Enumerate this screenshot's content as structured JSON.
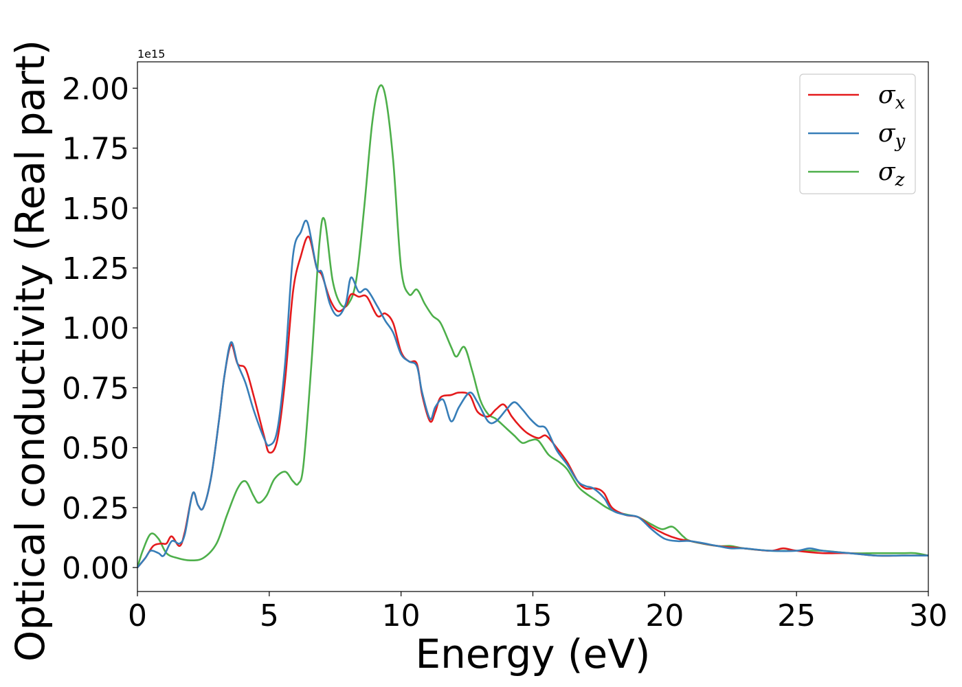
{
  "chart_data": {
    "type": "line",
    "title": "",
    "xlabel": "Energy (eV)",
    "ylabel": "Optical conductivity (Real part)",
    "y_offset_label": "1e15",
    "xlim": [
      0,
      30
    ],
    "ylim": [
      -0.1,
      2.11
    ],
    "x_ticks": [
      0,
      5,
      10,
      15,
      20,
      25,
      30
    ],
    "x_tick_labels": [
      "0",
      "5",
      "10",
      "15",
      "20",
      "25",
      "30"
    ],
    "y_ticks": [
      0,
      0.25,
      0.5,
      0.75,
      1.0,
      1.25,
      1.5,
      1.75,
      2.0
    ],
    "y_tick_labels": [
      "0.00",
      "0.25",
      "0.50",
      "0.75",
      "1.00",
      "1.25",
      "1.50",
      "1.75",
      "2.00"
    ],
    "grid": false,
    "legend_position": "top-right",
    "series": [
      {
        "name": "σ",
        "name_sub": "x",
        "color": "#e41a1c",
        "points": [
          [
            0,
            0
          ],
          [
            0.3,
            0.04
          ],
          [
            0.6,
            0.09
          ],
          [
            0.9,
            0.1
          ],
          [
            1.1,
            0.1
          ],
          [
            1.3,
            0.13
          ],
          [
            1.6,
            0.09
          ],
          [
            1.8,
            0.15
          ],
          [
            2.1,
            0.31
          ],
          [
            2.3,
            0.26
          ],
          [
            2.5,
            0.25
          ],
          [
            2.8,
            0.38
          ],
          [
            3.1,
            0.62
          ],
          [
            3.3,
            0.8
          ],
          [
            3.55,
            0.93
          ],
          [
            3.8,
            0.85
          ],
          [
            4.1,
            0.83
          ],
          [
            4.4,
            0.72
          ],
          [
            4.8,
            0.55
          ],
          [
            5.0,
            0.48
          ],
          [
            5.3,
            0.53
          ],
          [
            5.6,
            0.78
          ],
          [
            5.9,
            1.15
          ],
          [
            6.2,
            1.3
          ],
          [
            6.5,
            1.38
          ],
          [
            6.8,
            1.25
          ],
          [
            7.0,
            1.22
          ],
          [
            7.3,
            1.12
          ],
          [
            7.6,
            1.07
          ],
          [
            7.9,
            1.09
          ],
          [
            8.1,
            1.14
          ],
          [
            8.4,
            1.13
          ],
          [
            8.7,
            1.13
          ],
          [
            9.1,
            1.05
          ],
          [
            9.4,
            1.06
          ],
          [
            9.7,
            1.02
          ],
          [
            10.0,
            0.9
          ],
          [
            10.3,
            0.86
          ],
          [
            10.6,
            0.85
          ],
          [
            10.8,
            0.72
          ],
          [
            11.1,
            0.61
          ],
          [
            11.3,
            0.65
          ],
          [
            11.5,
            0.71
          ],
          [
            11.9,
            0.72
          ],
          [
            12.2,
            0.73
          ],
          [
            12.6,
            0.72
          ],
          [
            12.9,
            0.65
          ],
          [
            13.3,
            0.63
          ],
          [
            13.6,
            0.66
          ],
          [
            13.9,
            0.68
          ],
          [
            14.2,
            0.63
          ],
          [
            14.5,
            0.59
          ],
          [
            14.8,
            0.56
          ],
          [
            15.2,
            0.54
          ],
          [
            15.5,
            0.55
          ],
          [
            15.9,
            0.5
          ],
          [
            16.3,
            0.44
          ],
          [
            16.7,
            0.36
          ],
          [
            17.0,
            0.33
          ],
          [
            17.4,
            0.33
          ],
          [
            17.7,
            0.31
          ],
          [
            18.0,
            0.25
          ],
          [
            18.5,
            0.22
          ],
          [
            19.0,
            0.21
          ],
          [
            19.5,
            0.17
          ],
          [
            20.0,
            0.14
          ],
          [
            20.5,
            0.12
          ],
          [
            21.0,
            0.11
          ],
          [
            22.0,
            0.09
          ],
          [
            23.0,
            0.08
          ],
          [
            24.0,
            0.07
          ],
          [
            24.5,
            0.08
          ],
          [
            25.0,
            0.07
          ],
          [
            26.0,
            0.06
          ],
          [
            27.0,
            0.06
          ],
          [
            28.0,
            0.05
          ],
          [
            29.0,
            0.05
          ],
          [
            30.0,
            0.05
          ]
        ]
      },
      {
        "name": "σ",
        "name_sub": "y",
        "color": "#377eb8",
        "points": [
          [
            0,
            0
          ],
          [
            0.3,
            0.04
          ],
          [
            0.5,
            0.07
          ],
          [
            0.8,
            0.06
          ],
          [
            1.0,
            0.05
          ],
          [
            1.3,
            0.11
          ],
          [
            1.6,
            0.1
          ],
          [
            1.8,
            0.14
          ],
          [
            2.1,
            0.31
          ],
          [
            2.3,
            0.26
          ],
          [
            2.5,
            0.25
          ],
          [
            2.8,
            0.38
          ],
          [
            3.1,
            0.62
          ],
          [
            3.3,
            0.8
          ],
          [
            3.55,
            0.94
          ],
          [
            3.8,
            0.85
          ],
          [
            4.1,
            0.77
          ],
          [
            4.4,
            0.66
          ],
          [
            4.8,
            0.54
          ],
          [
            5.0,
            0.51
          ],
          [
            5.3,
            0.57
          ],
          [
            5.6,
            0.85
          ],
          [
            5.9,
            1.3
          ],
          [
            6.2,
            1.4
          ],
          [
            6.45,
            1.44
          ],
          [
            6.8,
            1.25
          ],
          [
            7.0,
            1.23
          ],
          [
            7.3,
            1.1
          ],
          [
            7.6,
            1.05
          ],
          [
            7.9,
            1.1
          ],
          [
            8.1,
            1.21
          ],
          [
            8.4,
            1.15
          ],
          [
            8.7,
            1.16
          ],
          [
            9.1,
            1.09
          ],
          [
            9.4,
            1.03
          ],
          [
            9.7,
            0.98
          ],
          [
            10.0,
            0.89
          ],
          [
            10.3,
            0.86
          ],
          [
            10.6,
            0.84
          ],
          [
            10.8,
            0.73
          ],
          [
            11.1,
            0.62
          ],
          [
            11.3,
            0.67
          ],
          [
            11.6,
            0.7
          ],
          [
            11.9,
            0.61
          ],
          [
            12.2,
            0.67
          ],
          [
            12.6,
            0.73
          ],
          [
            12.9,
            0.69
          ],
          [
            13.3,
            0.61
          ],
          [
            13.6,
            0.61
          ],
          [
            14.0,
            0.66
          ],
          [
            14.3,
            0.69
          ],
          [
            14.6,
            0.66
          ],
          [
            14.9,
            0.62
          ],
          [
            15.2,
            0.59
          ],
          [
            15.5,
            0.58
          ],
          [
            15.9,
            0.49
          ],
          [
            16.3,
            0.43
          ],
          [
            16.7,
            0.36
          ],
          [
            17.0,
            0.34
          ],
          [
            17.3,
            0.33
          ],
          [
            17.7,
            0.29
          ],
          [
            18.0,
            0.24
          ],
          [
            18.5,
            0.22
          ],
          [
            19.0,
            0.21
          ],
          [
            19.5,
            0.16
          ],
          [
            20.0,
            0.12
          ],
          [
            20.5,
            0.11
          ],
          [
            21.0,
            0.11
          ],
          [
            22.0,
            0.09
          ],
          [
            22.5,
            0.08
          ],
          [
            23.0,
            0.08
          ],
          [
            24.0,
            0.07
          ],
          [
            25.0,
            0.07
          ],
          [
            25.5,
            0.08
          ],
          [
            26.0,
            0.07
          ],
          [
            27.0,
            0.06
          ],
          [
            28.0,
            0.05
          ],
          [
            29.0,
            0.05
          ],
          [
            30.0,
            0.05
          ]
        ]
      },
      {
        "name": "σ",
        "name_sub": "z",
        "color": "#4daf4a",
        "points": [
          [
            0,
            0
          ],
          [
            0.2,
            0.07
          ],
          [
            0.5,
            0.14
          ],
          [
            0.8,
            0.12
          ],
          [
            1.1,
            0.06
          ],
          [
            1.5,
            0.04
          ],
          [
            2.0,
            0.03
          ],
          [
            2.5,
            0.04
          ],
          [
            3.0,
            0.1
          ],
          [
            3.4,
            0.22
          ],
          [
            3.8,
            0.33
          ],
          [
            4.1,
            0.36
          ],
          [
            4.4,
            0.3
          ],
          [
            4.6,
            0.27
          ],
          [
            4.9,
            0.3
          ],
          [
            5.2,
            0.37
          ],
          [
            5.6,
            0.4
          ],
          [
            5.9,
            0.36
          ],
          [
            6.1,
            0.35
          ],
          [
            6.3,
            0.43
          ],
          [
            6.6,
            0.85
          ],
          [
            6.9,
            1.35
          ],
          [
            7.1,
            1.45
          ],
          [
            7.4,
            1.2
          ],
          [
            7.7,
            1.1
          ],
          [
            8.0,
            1.1
          ],
          [
            8.3,
            1.2
          ],
          [
            8.6,
            1.5
          ],
          [
            8.9,
            1.85
          ],
          [
            9.15,
            2.0
          ],
          [
            9.4,
            1.97
          ],
          [
            9.7,
            1.7
          ],
          [
            10.0,
            1.25
          ],
          [
            10.3,
            1.14
          ],
          [
            10.6,
            1.16
          ],
          [
            10.9,
            1.1
          ],
          [
            11.2,
            1.05
          ],
          [
            11.5,
            1.02
          ],
          [
            11.9,
            0.92
          ],
          [
            12.1,
            0.88
          ],
          [
            12.4,
            0.92
          ],
          [
            12.7,
            0.82
          ],
          [
            13.0,
            0.7
          ],
          [
            13.3,
            0.64
          ],
          [
            13.6,
            0.62
          ],
          [
            14.0,
            0.58
          ],
          [
            14.3,
            0.55
          ],
          [
            14.6,
            0.52
          ],
          [
            14.9,
            0.53
          ],
          [
            15.2,
            0.53
          ],
          [
            15.6,
            0.47
          ],
          [
            16.0,
            0.44
          ],
          [
            16.3,
            0.41
          ],
          [
            16.7,
            0.34
          ],
          [
            17.0,
            0.31
          ],
          [
            17.4,
            0.28
          ],
          [
            17.8,
            0.25
          ],
          [
            18.2,
            0.23
          ],
          [
            18.6,
            0.22
          ],
          [
            19.0,
            0.21
          ],
          [
            19.5,
            0.18
          ],
          [
            19.9,
            0.16
          ],
          [
            20.3,
            0.17
          ],
          [
            20.7,
            0.13
          ],
          [
            21.0,
            0.11
          ],
          [
            22.0,
            0.09
          ],
          [
            22.5,
            0.09
          ],
          [
            23.0,
            0.08
          ],
          [
            24.0,
            0.07
          ],
          [
            25.0,
            0.07
          ],
          [
            26.0,
            0.07
          ],
          [
            27.0,
            0.06
          ],
          [
            28.0,
            0.06
          ],
          [
            29.0,
            0.06
          ],
          [
            29.5,
            0.06
          ],
          [
            30.0,
            0.05
          ]
        ]
      }
    ]
  }
}
